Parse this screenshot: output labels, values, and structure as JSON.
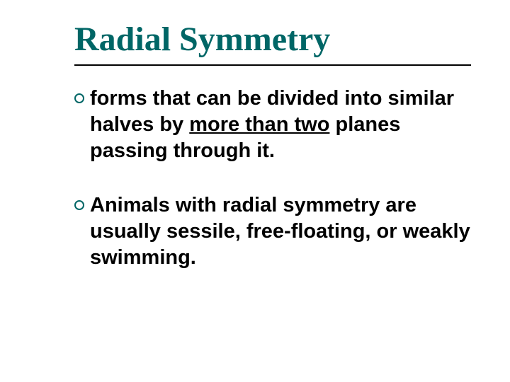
{
  "slide": {
    "title": "Radial Symmetry",
    "title_color": "#006666",
    "title_fontsize": 48,
    "rule_color": "#000000",
    "bullet_marker_color": "#006666",
    "body_fontsize": 29,
    "bullets": [
      {
        "pre": "forms that can be divided into similar halves by ",
        "underlined": "more than two",
        "post": " planes passing through it."
      },
      {
        "pre": "Animals with radial symmetry are usually sessile, free-floating, or weakly swimming.",
        "underlined": "",
        "post": ""
      }
    ]
  }
}
